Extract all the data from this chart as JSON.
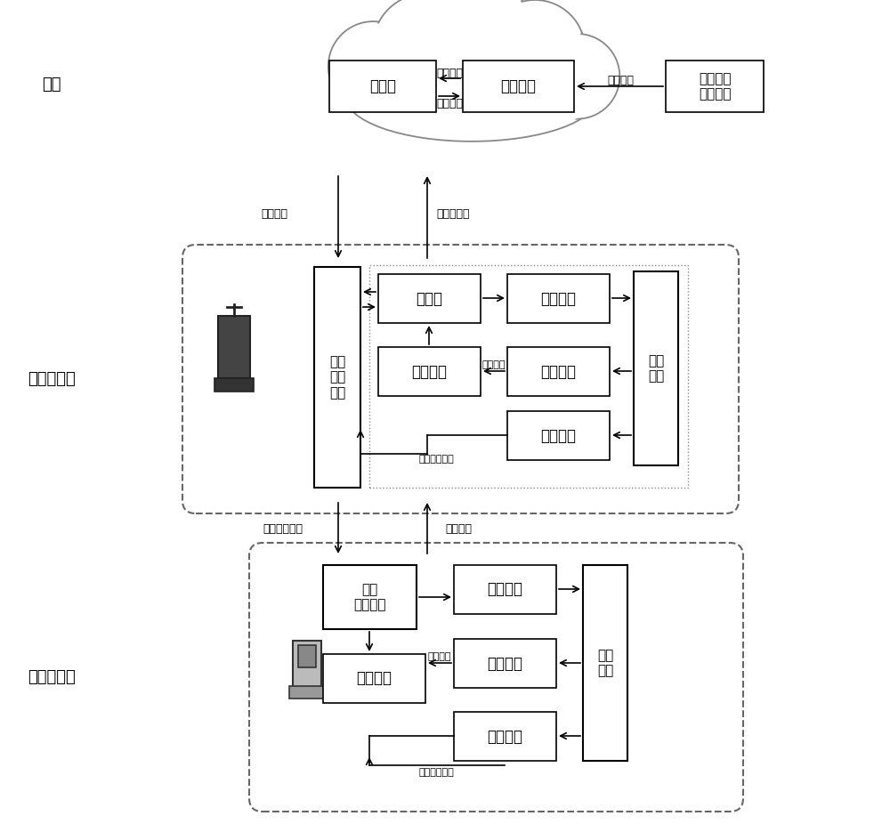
{
  "bg_color": "#ffffff",
  "font_main": 12,
  "font_small": 9,
  "font_section": 13,
  "font_label": 10,
  "cloud_section_label": "云端",
  "master_section_label": "充电桩主机",
  "slave_section_label": "充电桩从机",
  "db_label": "数据库",
  "cloud_server_label": "云服务器",
  "traffic_label": "交通状况\n监测系统",
  "current_info": "当前信息",
  "history_info": "历史信息",
  "realtime_road": "实时路况",
  "control_cmd": "控制指令",
  "station_info": "充电站信息",
  "comm1_label": "第一\n通信\n模块",
  "processor_label": "处理器",
  "storage1_label": "存储模块",
  "detect1_label": "检测模块",
  "stats1_label": "统计模块",
  "control1_label": "控制模块",
  "charge1_label": "充电\n模块",
  "trade_info": "交易信息",
  "work_state_info": "工作状态信息",
  "slave_ctrl_cmd": "从机控制指令",
  "slave_info": "从机信息",
  "comm2_label": "第二\n通信模块",
  "storage2_label": "存储模块",
  "detect2_label": "检测模块",
  "stats2_label": "统计模块",
  "control2_label": "控制模块",
  "charge2_label": "充电\n模块"
}
